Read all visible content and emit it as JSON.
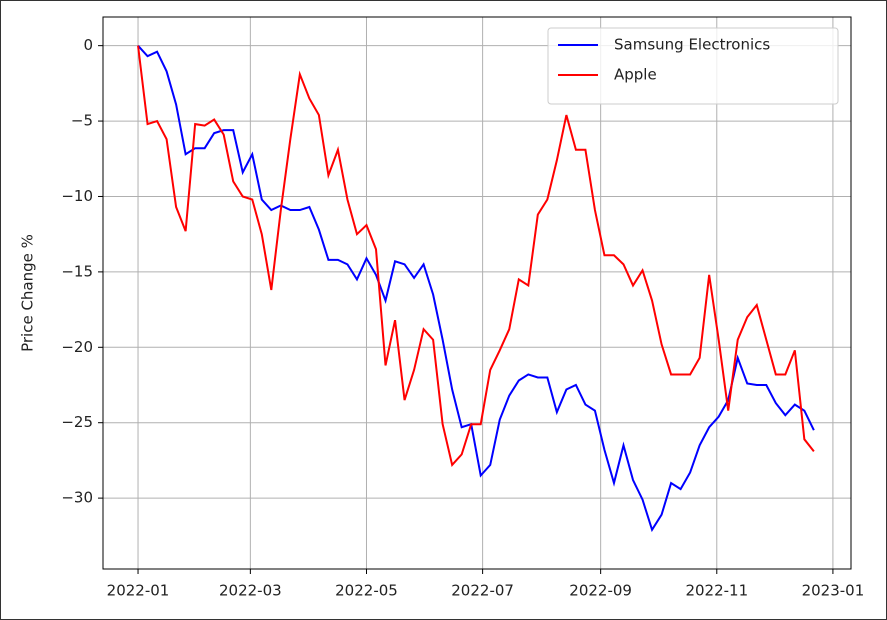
{
  "chart_data": {
    "type": "line",
    "ylabel": "Price Change %",
    "x": [
      0,
      5,
      10,
      15,
      20,
      25,
      30,
      35,
      40,
      45,
      50,
      55,
      60,
      65,
      70,
      75,
      80,
      85,
      90,
      95,
      100,
      105,
      110,
      115,
      120,
      125,
      130,
      135,
      140,
      145,
      150,
      155,
      160,
      165,
      170,
      175,
      180,
      185,
      190,
      195,
      200,
      205,
      210,
      215,
      220,
      225,
      230,
      235,
      240,
      245,
      250,
      255,
      260,
      265,
      270,
      275,
      280,
      285,
      290,
      295,
      300,
      305,
      310,
      315,
      320,
      325,
      330,
      335,
      340,
      345,
      350,
      355
    ],
    "series": [
      {
        "name": "Samsung Electronics",
        "color": "#0000ff",
        "values": [
          0,
          -0.7,
          -0.4,
          -1.7,
          -3.9,
          -7.2,
          -6.8,
          -6.8,
          -5.8,
          -5.6,
          -5.6,
          -8.4,
          -7.2,
          -10.2,
          -10.9,
          -10.6,
          -10.9,
          -10.9,
          -10.7,
          -12.2,
          -14.2,
          -14.2,
          -14.5,
          -15.5,
          -14.1,
          -15.2,
          -16.9,
          -14.3,
          -14.5,
          -15.4,
          -14.5,
          -16.5,
          -19.5,
          -22.8,
          -25.3,
          -25.1,
          -28.5,
          -27.8,
          -24.8,
          -23.2,
          -22.2,
          -21.8,
          -22.0,
          -22.0,
          -24.3,
          -22.8,
          -22.5,
          -23.8,
          -24.2,
          -26.8,
          -29.0,
          -26.5,
          -28.8,
          -30.1,
          -32.1,
          -31.1,
          -29.0,
          -29.4,
          -28.3,
          -26.5,
          -25.3,
          -24.6,
          -23.5,
          -20.7,
          -22.4,
          -22.5,
          -22.5,
          -23.7,
          -24.5,
          -23.8,
          -24.2,
          -25.5
        ]
      },
      {
        "name": "Apple",
        "color": "#ff0000",
        "values": [
          0,
          -5.2,
          -5.0,
          -6.2,
          -10.7,
          -12.3,
          -5.2,
          -5.3,
          -4.9,
          -5.9,
          -9.0,
          -10.0,
          -10.2,
          -12.5,
          -16.2,
          -10.9,
          -6.2,
          -1.9,
          -3.5,
          -4.6,
          -8.6,
          -6.9,
          -10.2,
          -12.5,
          -11.9,
          -13.5,
          -21.2,
          -18.2,
          -23.5,
          -21.5,
          -18.8,
          -19.5,
          -25.1,
          -27.8,
          -27.1,
          -25.1,
          -25.1,
          -21.5,
          -20.2,
          -18.8,
          -15.5,
          -15.9,
          -11.2,
          -10.2,
          -7.6,
          -4.6,
          -6.9,
          -6.9,
          -10.9,
          -13.9,
          -13.9,
          -14.5,
          -15.9,
          -14.9,
          -16.9,
          -19.8,
          -21.8,
          -21.8,
          -21.8,
          -20.7,
          -15.2,
          -19.5,
          -24.2,
          -19.5,
          -18.0,
          -17.2,
          -19.5,
          -21.8,
          -21.8,
          -20.2,
          -26.1,
          -26.9
        ]
      }
    ],
    "xlim": [
      -18.4,
      374.5
    ],
    "xticks": [
      {
        "value": 0,
        "label": "2022-01"
      },
      {
        "value": 59,
        "label": "2022-03"
      },
      {
        "value": 120,
        "label": "2022-05"
      },
      {
        "value": 181,
        "label": "2022-07"
      },
      {
        "value": 243,
        "label": "2022-09"
      },
      {
        "value": 304,
        "label": "2022-11"
      },
      {
        "value": 365,
        "label": "2023-01"
      }
    ],
    "ylim": [
      -34.7,
      1.9
    ],
    "yticks": [
      0,
      {
        "value": -5,
        "label": "−5"
      },
      {
        "value": -10,
        "label": "−10"
      },
      {
        "value": -15,
        "label": "−15"
      },
      {
        "value": -20,
        "label": "−20"
      },
      {
        "value": -25,
        "label": "−25"
      },
      {
        "value": -30,
        "label": "−30"
      }
    ],
    "grid": true,
    "legend": "upper right"
  }
}
